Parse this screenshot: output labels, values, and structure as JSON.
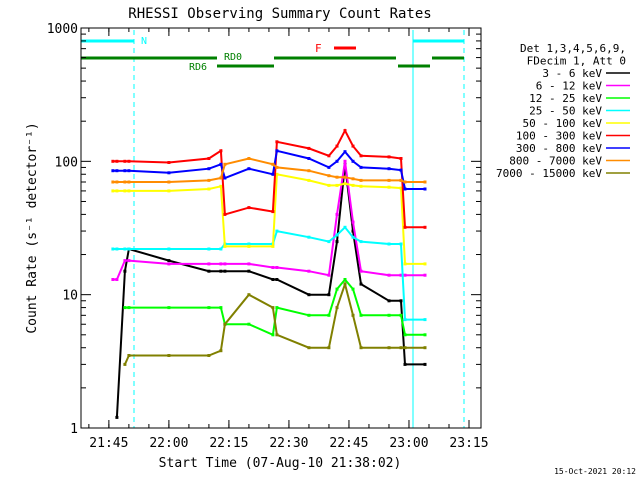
{
  "chart_data": {
    "type": "line",
    "title": "RHESSI Observing Summary Count Rates",
    "xlabel": "Start Time (07-Aug-10 21:38:02)",
    "ylabel": "Count Rate (s⁻¹ detector⁻¹)",
    "y_scale": "log",
    "ylim": [
      1,
      1000
    ],
    "xlim": [
      "21:38:02",
      "23:18:00"
    ],
    "x_ticks": [
      "21:45",
      "22:00",
      "22:15",
      "22:30",
      "22:45",
      "23:00",
      "23:15"
    ],
    "y_ticks": [
      "1",
      "10",
      "100",
      "1000"
    ],
    "grid": false,
    "legend_position": "right",
    "legend_header": [
      "Det 1,3,4,5,6,9,",
      "FDecim 1, Att 0"
    ],
    "timestamp": "15-Oct-2021 20:12",
    "x": [
      "21:46",
      "21:47",
      "21:49",
      "21:50",
      "22:00",
      "22:10",
      "22:13",
      "22:14",
      "22:20",
      "22:26",
      "22:27",
      "22:35",
      "22:40",
      "22:42",
      "22:44",
      "22:46",
      "22:48",
      "22:55",
      "22:58",
      "22:59",
      "23:04"
    ],
    "series": [
      {
        "name": "3 - 6 keV",
        "color": "#000000",
        "values": [
          null,
          1.2,
          15,
          22,
          18,
          15,
          15,
          15,
          15,
          13,
          13,
          10,
          10,
          25,
          95,
          30,
          12,
          9,
          9,
          3,
          3
        ]
      },
      {
        "name": "6 - 12 keV",
        "color": "#ff00ff",
        "values": [
          13,
          13,
          18,
          18,
          17,
          17,
          17,
          17,
          17,
          16,
          16,
          15,
          14,
          40,
          100,
          35,
          15,
          14,
          14,
          14,
          14
        ]
      },
      {
        "name": "12 - 25 keV",
        "color": "#00ff00",
        "values": [
          null,
          null,
          8,
          8,
          8,
          8,
          8,
          6,
          6,
          5,
          8,
          7,
          7,
          11,
          13,
          11,
          7,
          7,
          7,
          5,
          5
        ]
      },
      {
        "name": "25 - 50 keV",
        "color": "#00ffff",
        "values": [
          22,
          22,
          22,
          22,
          22,
          22,
          22,
          24,
          24,
          24,
          30,
          27,
          25,
          28,
          32,
          27,
          25,
          24,
          24,
          6.5,
          6.5
        ]
      },
      {
        "name": "50 - 100 keV",
        "color": "#ffff00",
        "values": [
          60,
          60,
          60,
          60,
          60,
          62,
          65,
          23,
          23,
          23,
          80,
          72,
          66,
          66,
          68,
          66,
          65,
          64,
          63,
          17,
          17
        ]
      },
      {
        "name": "100 - 300 keV",
        "color": "#ff0000",
        "values": [
          100,
          100,
          100,
          100,
          98,
          105,
          120,
          40,
          45,
          42,
          140,
          125,
          110,
          130,
          170,
          130,
          110,
          108,
          105,
          32,
          32
        ]
      },
      {
        "name": "300 - 800 keV",
        "color": "#0000ff",
        "values": [
          85,
          85,
          85,
          85,
          82,
          88,
          95,
          75,
          88,
          80,
          120,
          105,
          90,
          100,
          118,
          100,
          90,
          88,
          86,
          62,
          62
        ]
      },
      {
        "name": "800 - 7000 keV",
        "color": "#ff8c00",
        "values": [
          70,
          70,
          70,
          70,
          70,
          72,
          75,
          95,
          105,
          95,
          90,
          85,
          78,
          76,
          76,
          74,
          72,
          72,
          72,
          70,
          70
        ]
      },
      {
        "name": "7000 - 15000 keV",
        "color": "#808000",
        "values": [
          null,
          null,
          3,
          3.5,
          3.5,
          3.5,
          3.8,
          6,
          10,
          8,
          5,
          4,
          4,
          8,
          12,
          7,
          4,
          4,
          4,
          4,
          4
        ]
      }
    ],
    "annotations": [
      {
        "label": "N",
        "color": "#00ffff"
      },
      {
        "label": "F",
        "color": "#ff0000"
      },
      {
        "label": "RD0",
        "color": "#008000"
      },
      {
        "label": "RD6",
        "color": "#008000"
      }
    ]
  }
}
